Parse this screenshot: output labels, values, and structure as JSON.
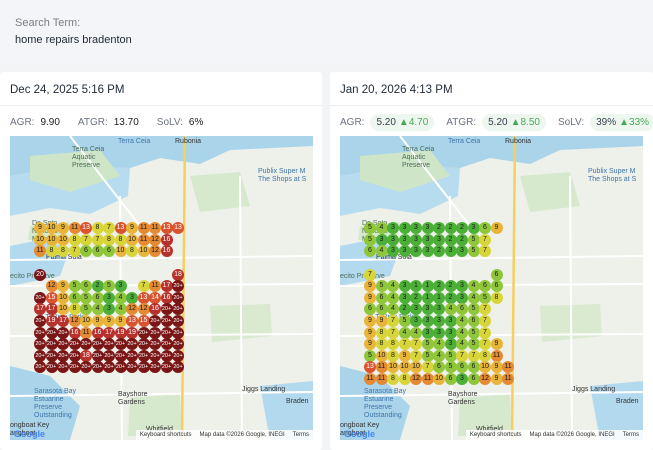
{
  "search": {
    "label": "Search Term:",
    "term": "home repairs bradenton"
  },
  "left": {
    "date": "Dec 24, 2025 5:16 PM",
    "metrics": [
      {
        "label": "AGR:",
        "value": "9.90"
      },
      {
        "label": "ATGR:",
        "value": "13.70"
      },
      {
        "label": "SoLV:",
        "value": "6%"
      }
    ]
  },
  "right": {
    "date": "Jan 20, 2026 4:13 PM",
    "metrics": [
      {
        "label": "AGR:",
        "value": "5.20",
        "delta": "▲4.70"
      },
      {
        "label": "ATGR:",
        "value": "5.20",
        "delta": "▲8.50"
      },
      {
        "label": "SoLV:",
        "value": "39%",
        "delta": "▲33%"
      }
    ]
  },
  "map_labels": {
    "terra_ceia": "Terra Ceia",
    "rubonia": "Rubonia",
    "terra_ceia_preserve": "Terra Ceia\nAquatic\nPreserve",
    "publix": "Publix Super M\nThe Shops at S",
    "de_soto": "De Soto\nNational\nMemorial",
    "palma_sola": "Palma Sola",
    "eco_preserve": "ecito Preserve",
    "gt_bray": "G.T. Bray Park",
    "jiggs": "Jiggs Landing",
    "sarasota_bay": "Sarasota Bay\nEstuarine\nPreserve\nOutstanding",
    "bayshore": "Bayshore\nGardens",
    "braden": "Braden",
    "whitfield": "Whitfield",
    "longboat": "ongboat Key\nangboat",
    "shoe": "Sheo",
    "google": "Google",
    "shortcuts": "Keyboard shortcuts",
    "map_data": "Map data ©2026 Google, INEGI",
    "terms": "Terms"
  },
  "grid_left": [
    [
      "",
      "",
      "",
      "",
      "",
      "",
      "",
      "",
      "",
      "",
      "",
      "",
      "",
      "",
      "",
      ""
    ],
    [
      "",
      "",
      "",
      "",
      "",
      "",
      "",
      "",
      "",
      "",
      "",
      "",
      "",
      "",
      "",
      ""
    ],
    [
      "",
      "",
      "9",
      "10",
      "9",
      "11",
      "13",
      "8",
      "7",
      "13",
      "9",
      "11",
      "11",
      "13",
      "13",
      ""
    ],
    [
      "",
      "",
      "10",
      "10",
      "10",
      "8",
      "7",
      "7",
      "8",
      "8",
      "10",
      "11",
      "12",
      "16",
      "",
      ""
    ],
    [
      "",
      "",
      "11",
      "8",
      "8",
      "7",
      "6",
      "6",
      "6",
      "10",
      "8",
      "10",
      "12",
      "16",
      "",
      ""
    ],
    [
      "",
      "",
      "",
      "",
      "",
      "",
      "",
      "",
      "",
      "",
      "",
      "",
      "",
      "",
      "",
      ""
    ],
    [
      "",
      "",
      "20",
      "",
      "",
      "",
      "",
      "",
      "",
      "",
      "",
      "",
      "",
      "",
      "18",
      ""
    ],
    [
      "",
      "",
      "",
      "12",
      "9",
      "5",
      "6",
      "2",
      "5",
      "3",
      "",
      "7",
      "11",
      "17",
      "20+",
      ""
    ],
    [
      "",
      "",
      "20+",
      "15",
      "10",
      "6",
      "5",
      "6",
      "3",
      "4",
      "3",
      "13",
      "14",
      "16",
      "20+",
      ""
    ],
    [
      "",
      "",
      "17",
      "17",
      "10",
      "8",
      "5",
      "4",
      "3",
      "4",
      "12",
      "12",
      "16",
      "20+",
      "20+",
      ""
    ],
    [
      "",
      "",
      "20+",
      "19",
      "17",
      "12",
      "10",
      "9",
      "9",
      "9",
      "13",
      "15",
      "20+",
      "20+",
      "20+",
      ""
    ],
    [
      "",
      "",
      "20+",
      "20+",
      "20+",
      "16",
      "11",
      "16",
      "17",
      "19",
      "19",
      "20+",
      "20+",
      "20+",
      "20+",
      ""
    ],
    [
      "",
      "",
      "20+",
      "20+",
      "20+",
      "20+",
      "20+",
      "20+",
      "20+",
      "20+",
      "20+",
      "20+",
      "20+",
      "20+",
      "20+",
      ""
    ],
    [
      "",
      "",
      "20+",
      "20+",
      "20+",
      "20+",
      "18",
      "20+",
      "20+",
      "20+",
      "20+",
      "20+",
      "20+",
      "20+",
      "20+",
      ""
    ],
    [
      "",
      "",
      "20+",
      "20+",
      "20+",
      "20+",
      "20+",
      "20+",
      "20+",
      "20+",
      "20+",
      "20+",
      "20+",
      "20+",
      "20+",
      ""
    ]
  ],
  "grid_right": [
    [
      "",
      "",
      "",
      "",
      "",
      "",
      "",
      "",
      "",
      "",
      "",
      "",
      "",
      "",
      "",
      ""
    ],
    [
      "",
      "",
      "",
      "",
      "",
      "",
      "",
      "",
      "",
      "",
      "",
      "",
      "",
      "",
      "",
      ""
    ],
    [
      "",
      "",
      "5",
      "4",
      "3",
      "3",
      "3",
      "3",
      "2",
      "2",
      "2",
      "3",
      "6",
      "9",
      "",
      ""
    ],
    [
      "",
      "",
      "5",
      "3",
      "3",
      "3",
      "3",
      "3",
      "3",
      "2",
      "2",
      "5",
      "7",
      "",
      ""
    ],
    [
      "",
      "",
      "6",
      "4",
      "3",
      "3",
      "3",
      "3",
      "2",
      "3",
      "3",
      "5",
      "7",
      "",
      ""
    ],
    [
      "",
      "",
      "",
      "",
      "",
      "",
      "",
      "",
      "",
      "",
      "",
      "",
      "",
      "",
      "",
      ""
    ],
    [
      "",
      "",
      "7",
      "",
      "",
      "",
      "",
      "",
      "",
      "",
      "",
      "",
      "",
      "6",
      ""
    ],
    [
      "",
      "",
      "9",
      "5",
      "4",
      "3",
      "1",
      "1",
      "2",
      "2",
      "3",
      "4",
      "6",
      "6",
      ""
    ],
    [
      "",
      "",
      "9",
      "6",
      "4",
      "3",
      "2",
      "1",
      "1",
      "2",
      "3",
      "4",
      "5",
      "8",
      ""
    ],
    [
      "",
      "",
      "6",
      "6",
      "4",
      "2",
      "3",
      "3",
      "3",
      "4",
      "6",
      "5",
      "7",
      ""
    ],
    [
      "",
      "",
      "9",
      "9",
      "7",
      "5",
      "3",
      "3",
      "3",
      "3",
      "4",
      "6",
      "7",
      ""
    ],
    [
      "",
      "",
      "9",
      "8",
      "7",
      "4",
      "4",
      "3",
      "3",
      "3",
      "4",
      "5",
      "7",
      ""
    ],
    [
      "",
      "",
      "9",
      "8",
      "8",
      "7",
      "7",
      "5",
      "4",
      "3",
      "4",
      "5",
      "7",
      "9",
      ""
    ],
    [
      "",
      "",
      "5",
      "10",
      "8",
      "9",
      "7",
      "5",
      "4",
      "5",
      "7",
      "7",
      "8",
      "11",
      ""
    ],
    [
      "",
      "",
      "13",
      "11",
      "10",
      "10",
      "10",
      "7",
      "6",
      "5",
      "6",
      "6",
      "10",
      "9",
      "11",
      ""
    ],
    [
      "",
      "",
      "11",
      "11",
      "8",
      "8",
      "12",
      "11",
      "10",
      "6",
      "3",
      "6",
      "12",
      "9",
      "11",
      ""
    ]
  ]
}
